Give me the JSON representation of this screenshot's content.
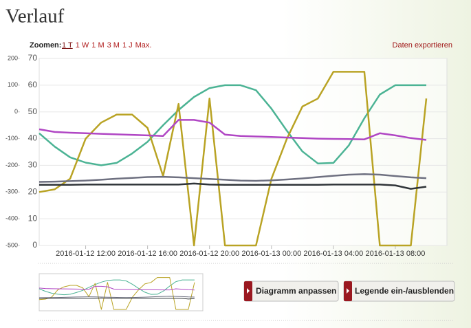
{
  "header": {
    "title": "Verlauf"
  },
  "zoom": {
    "label": "Zoomen:",
    "options": [
      "1 T",
      "1 W",
      "1 M",
      "3 M",
      "1 J",
      "Max."
    ]
  },
  "export": "Daten exportieren",
  "buttons": [
    "Diagramm anpassen",
    "Legende ein-/ausblenden"
  ],
  "chart_data": {
    "type": "line",
    "x": [
      "2016-01-12 09:00",
      "2016-01-12 10:00",
      "2016-01-12 11:00",
      "2016-01-12 12:00",
      "2016-01-12 13:00",
      "2016-01-12 14:00",
      "2016-01-12 15:00",
      "2016-01-12 16:00",
      "2016-01-12 17:00",
      "2016-01-12 18:00",
      "2016-01-12 19:00",
      "2016-01-12 20:00",
      "2016-01-12 21:00",
      "2016-01-12 22:00",
      "2016-01-12 23:00",
      "2016-01-13 00:00",
      "2016-01-13 01:00",
      "2016-01-13 02:00",
      "2016-01-13 03:00",
      "2016-01-13 04:00",
      "2016-01-13 05:00",
      "2016-01-13 06:00",
      "2016-01-13 07:00",
      "2016-01-13 08:00",
      "2016-01-13 09:00",
      "2016-01-13 10:00"
    ],
    "xlim": [
      "2016-01-12 09:00",
      "2016-01-13 11:20"
    ],
    "xticks": [
      "2016-01-12 12:00",
      "2016-01-12 16:00",
      "2016-01-12 20:00",
      "2016-01-13 00:00",
      "2016-01-13 04:00",
      "2016-01-13 08:00"
    ],
    "ylim": [
      0,
      70
    ],
    "yticks": [
      0,
      10,
      20,
      30,
      40,
      50,
      60,
      70
    ],
    "y2lim": [
      -500,
      200
    ],
    "y2ticks": [
      -500,
      -400,
      -300,
      -200,
      -100,
      0,
      100,
      200
    ],
    "grid": true,
    "series": [
      {
        "color": "#4bb394",
        "values": [
          42,
          37,
          33,
          31,
          30,
          30.9,
          34.4,
          38.8,
          45,
          50.7,
          55.6,
          58.9,
          60,
          60,
          58.1,
          51.2,
          42.9,
          35.2,
          30.7,
          30.9,
          37.5,
          47.6,
          56.5,
          60,
          60,
          60
        ]
      },
      {
        "color": "#b9a324",
        "values": [
          20,
          21,
          25,
          40,
          46,
          49,
          49,
          44,
          26,
          53,
          0,
          55,
          0,
          0,
          0,
          25,
          40,
          52,
          55,
          65,
          65,
          65,
          0,
          0,
          0,
          55
        ]
      },
      {
        "color": "#b046c4",
        "axis": "y2",
        "values": [
          -65,
          -75,
          -78,
          -80,
          -82,
          -84,
          -86,
          -88,
          -90,
          -30,
          -30,
          -40,
          -85,
          -90,
          -92,
          -94,
          -96,
          -98,
          -100,
          -101,
          -102,
          -103,
          -80,
          -88,
          -98,
          -105
        ]
      },
      {
        "color": "#6e7080",
        "axis": "y2",
        "values": [
          -262,
          -261,
          -259,
          -257,
          -254,
          -250,
          -247,
          -244,
          -243,
          -245,
          -248,
          -251,
          -254,
          -257,
          -258,
          -256,
          -253,
          -249,
          -244,
          -239,
          -235,
          -233,
          -235,
          -240,
          -245,
          -248
        ]
      },
      {
        "color": "#2f3438",
        "axis": "y2",
        "values": [
          -273,
          -273,
          -273,
          -272,
          -272,
          -272,
          -272,
          -272,
          -272,
          -272,
          -268,
          -272,
          -273,
          -273,
          -273,
          -273,
          -273,
          -273,
          -273,
          -272,
          -272,
          -272,
          -272,
          -275,
          -288,
          -280
        ]
      }
    ]
  }
}
